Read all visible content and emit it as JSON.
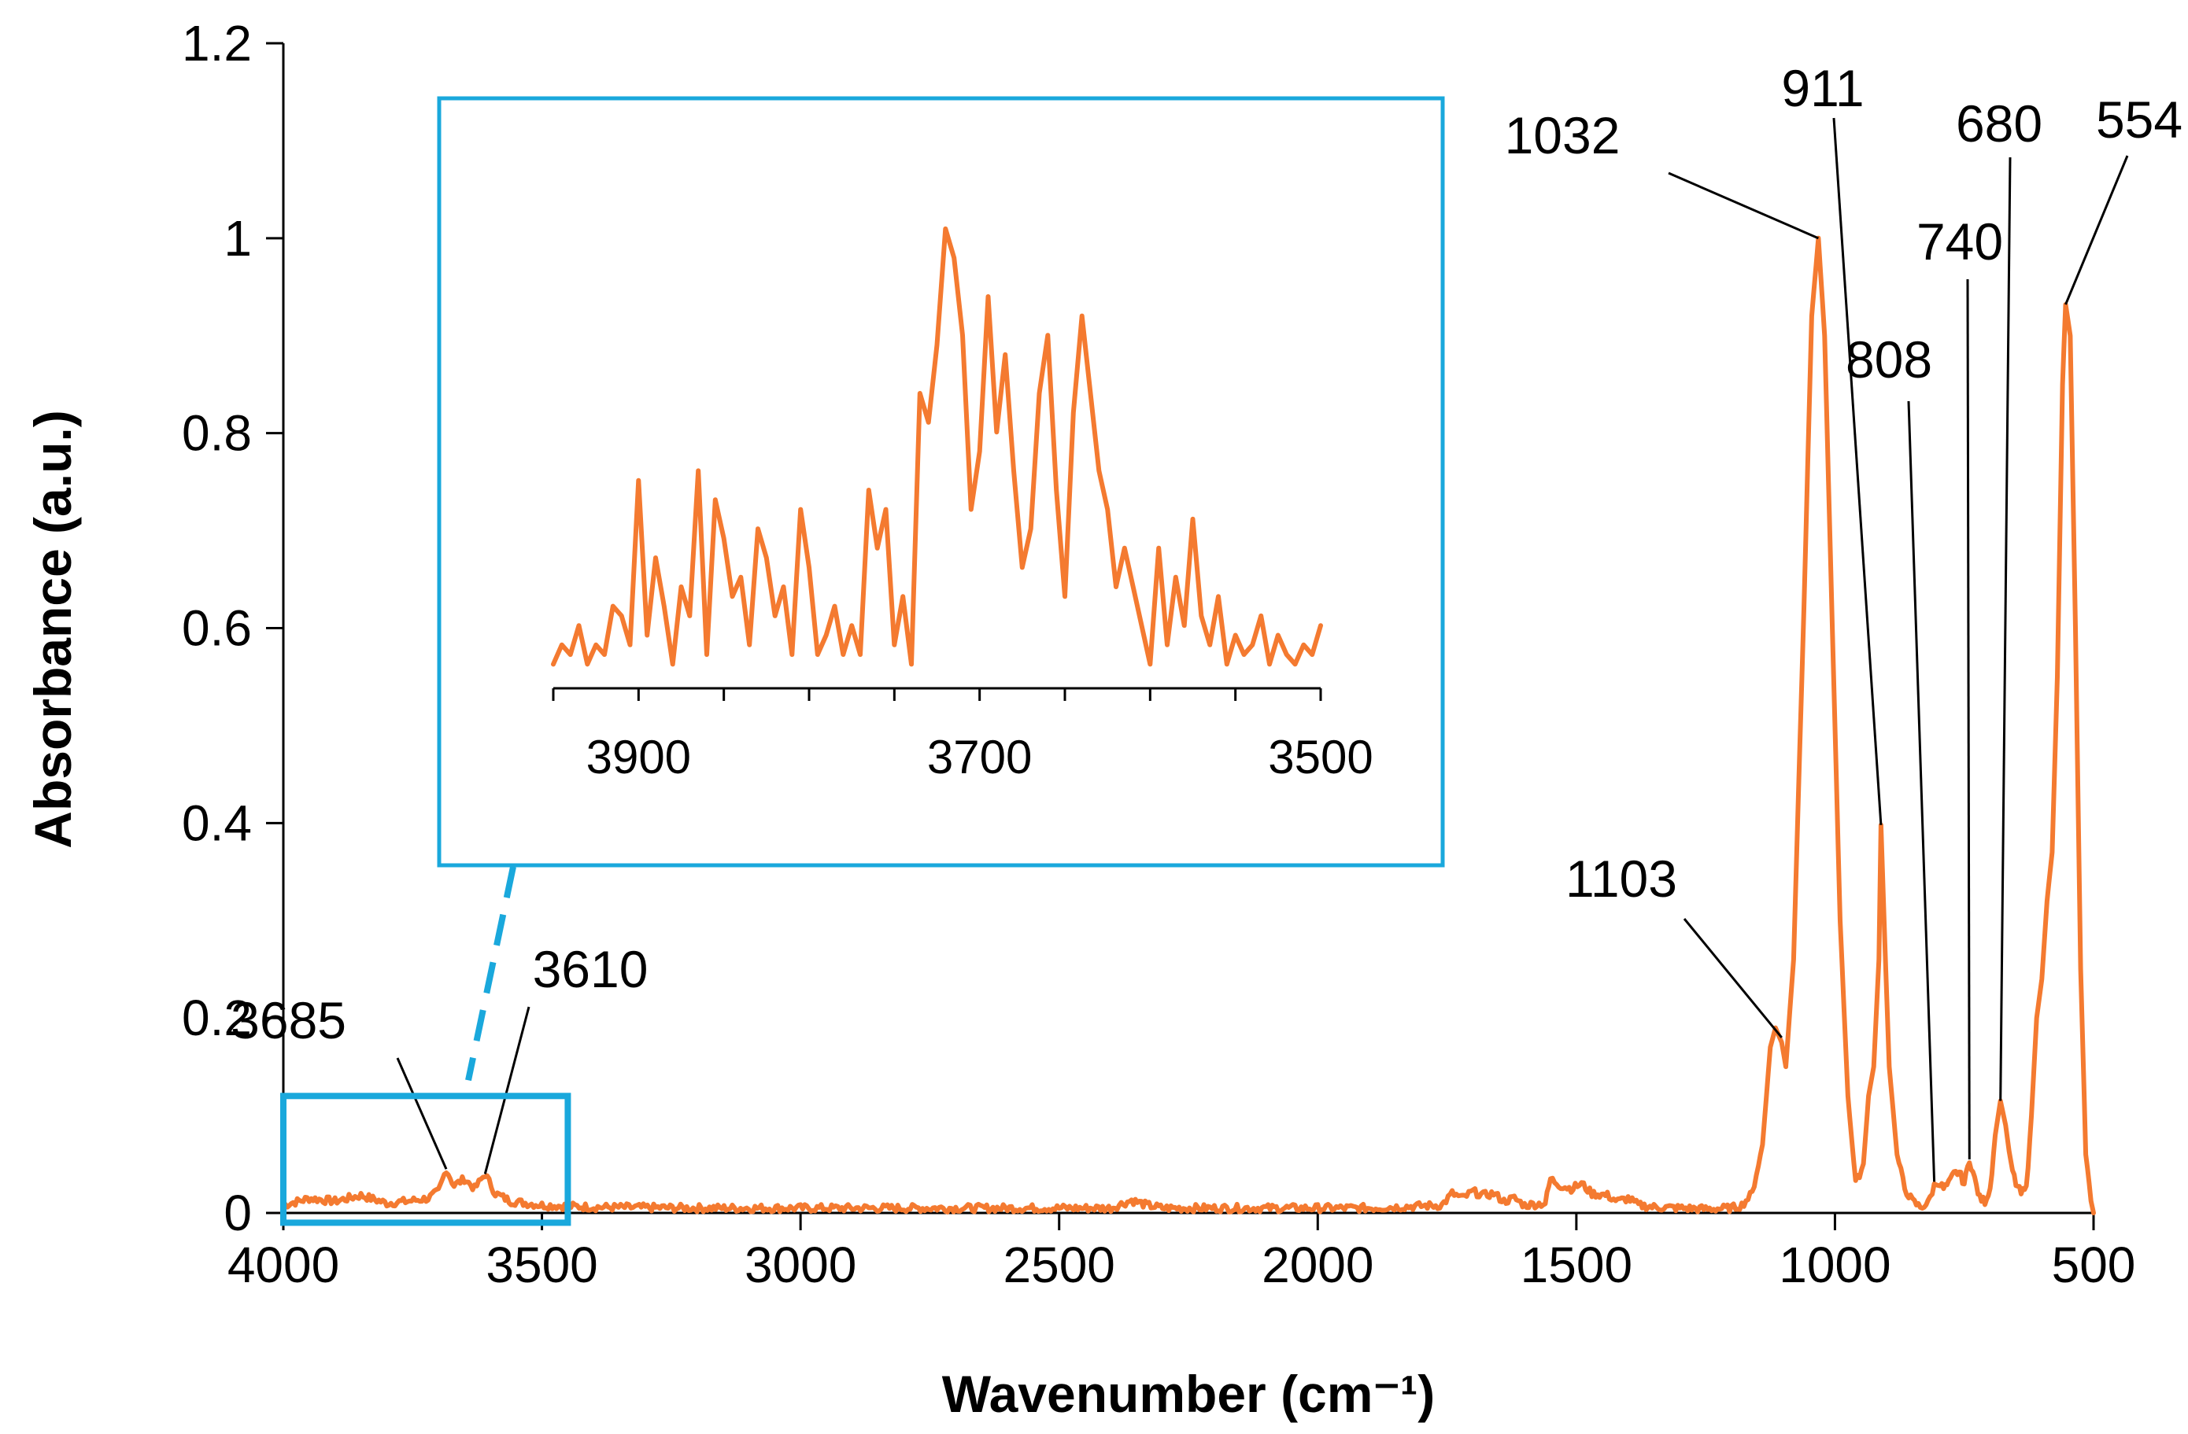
{
  "chart_data": {
    "type": "line",
    "title": "",
    "xlabel": "Wavenumber (cm⁻¹)",
    "ylabel": "Absorbance (a.u.)",
    "xlim": [
      4000,
      500
    ],
    "ylim": [
      0,
      1.2
    ],
    "x_reversed": true,
    "grid": false,
    "legend": "none",
    "line_color": "#f47a30",
    "x_ticks": [
      "4000",
      "3500",
      "3000",
      "2500",
      "2000",
      "1500",
      "1000",
      "500"
    ],
    "y_ticks": [
      "0",
      "0.2",
      "0.4",
      "0.6",
      "0.8",
      "1",
      "1.2"
    ],
    "series": [
      {
        "x": [
          4000,
          3950,
          3900,
          3850,
          3800,
          3760,
          3720,
          3700,
          3685,
          3670,
          3650,
          3630,
          3610,
          3590,
          3560,
          3500,
          3400,
          3200,
          3000,
          2800,
          2600,
          2400,
          2360,
          2330,
          2300,
          2100,
          1900,
          1760,
          1740,
          1720,
          1700,
          1680,
          1660,
          1640,
          1620,
          1600,
          1560,
          1550,
          1530,
          1510,
          1490,
          1470,
          1440,
          1420,
          1400,
          1380,
          1350,
          1300,
          1250,
          1200,
          1180,
          1160,
          1140,
          1125,
          1115,
          1103,
          1095,
          1080,
          1060,
          1045,
          1032,
          1020,
          1005,
          990,
          975,
          960,
          945,
          935,
          925,
          915,
          911,
          905,
          895,
          880,
          865,
          850,
          835,
          820,
          808,
          800,
          790,
          780,
          770,
          760,
          750,
          740,
          730,
          720,
          710,
          700,
          690,
          680,
          670,
          660,
          650,
          640,
          630,
          620,
          610,
          600,
          590,
          580,
          570,
          560,
          554,
          545,
          535,
          525,
          515,
          505,
          500
        ],
        "y": [
          0.008,
          0.015,
          0.012,
          0.018,
          0.01,
          0.012,
          0.015,
          0.022,
          0.045,
          0.028,
          0.035,
          0.025,
          0.04,
          0.02,
          0.012,
          0.008,
          0.006,
          0.005,
          0.005,
          0.005,
          0.005,
          0.005,
          0.013,
          0.008,
          0.005,
          0.005,
          0.005,
          0.008,
          0.02,
          0.015,
          0.022,
          0.018,
          0.02,
          0.012,
          0.015,
          0.008,
          0.01,
          0.035,
          0.028,
          0.025,
          0.03,
          0.02,
          0.018,
          0.012,
          0.015,
          0.008,
          0.006,
          0.005,
          0.004,
          0.005,
          0.008,
          0.02,
          0.07,
          0.17,
          0.19,
          0.175,
          0.15,
          0.26,
          0.62,
          0.92,
          1.0,
          0.9,
          0.6,
          0.3,
          0.12,
          0.03,
          0.05,
          0.12,
          0.15,
          0.26,
          0.398,
          0.3,
          0.15,
          0.06,
          0.025,
          0.012,
          0.006,
          0.01,
          0.028,
          0.032,
          0.025,
          0.03,
          0.04,
          0.042,
          0.03,
          0.055,
          0.035,
          0.015,
          0.012,
          0.025,
          0.08,
          0.115,
          0.09,
          0.05,
          0.03,
          0.02,
          0.025,
          0.1,
          0.2,
          0.24,
          0.32,
          0.37,
          0.55,
          0.85,
          0.932,
          0.9,
          0.6,
          0.25,
          0.06,
          0.01,
          0.0
        ]
      }
    ],
    "annotations": [
      {
        "label": "3685",
        "x": 3685,
        "y": 0.045
      },
      {
        "label": "3610",
        "x": 3610,
        "y": 0.04
      },
      {
        "label": "1103",
        "x": 1103,
        "y": 0.18
      },
      {
        "label": "1032",
        "x": 1032,
        "y": 1.0
      },
      {
        "label": "911",
        "x": 911,
        "y": 0.398
      },
      {
        "label": "808",
        "x": 808,
        "y": 0.032
      },
      {
        "label": "740",
        "x": 740,
        "y": 0.055
      },
      {
        "label": "680",
        "x": 680,
        "y": 0.115
      },
      {
        "label": "554",
        "x": 554,
        "y": 0.932
      }
    ],
    "inset": {
      "xlim": [
        3950,
        3500
      ],
      "x_reversed": true,
      "x_ticks": [
        "3900",
        "3700",
        "3500"
      ],
      "zoom_box": {
        "xlim": [
          4000,
          3450
        ],
        "ylim": [
          -0.01,
          0.12
        ]
      },
      "series": {
        "x": [
          3950,
          3945,
          3940,
          3935,
          3930,
          3925,
          3920,
          3915,
          3910,
          3905,
          3900,
          3895,
          3890,
          3885,
          3880,
          3875,
          3870,
          3865,
          3860,
          3855,
          3850,
          3845,
          3840,
          3835,
          3830,
          3825,
          3820,
          3815,
          3810,
          3805,
          3800,
          3795,
          3790,
          3785,
          3780,
          3775,
          3770,
          3765,
          3760,
          3755,
          3750,
          3745,
          3740,
          3735,
          3730,
          3725,
          3720,
          3715,
          3710,
          3705,
          3700,
          3695,
          3690,
          3685,
          3680,
          3675,
          3670,
          3665,
          3660,
          3655,
          3650,
          3645,
          3640,
          3635,
          3630,
          3625,
          3620,
          3615,
          3610,
          3605,
          3600,
          3595,
          3590,
          3585,
          3580,
          3575,
          3570,
          3565,
          3560,
          3555,
          3550,
          3545,
          3540,
          3535,
          3530,
          3525,
          3520,
          3515,
          3510,
          3505,
          3500
        ],
        "y": [
          0.02,
          0.04,
          0.03,
          0.06,
          0.02,
          0.04,
          0.03,
          0.08,
          0.07,
          0.04,
          0.21,
          0.05,
          0.13,
          0.08,
          0.02,
          0.1,
          0.07,
          0.22,
          0.03,
          0.19,
          0.15,
          0.09,
          0.11,
          0.04,
          0.16,
          0.13,
          0.07,
          0.1,
          0.03,
          0.18,
          0.12,
          0.03,
          0.05,
          0.08,
          0.03,
          0.06,
          0.03,
          0.2,
          0.14,
          0.18,
          0.04,
          0.09,
          0.02,
          0.3,
          0.27,
          0.35,
          0.47,
          0.44,
          0.36,
          0.18,
          0.24,
          0.4,
          0.26,
          0.34,
          0.22,
          0.12,
          0.16,
          0.3,
          0.36,
          0.2,
          0.09,
          0.28,
          0.38,
          0.3,
          0.22,
          0.18,
          0.1,
          0.14,
          0.1,
          0.06,
          0.02,
          0.14,
          0.04,
          0.11,
          0.06,
          0.17,
          0.07,
          0.04,
          0.09,
          0.02,
          0.05,
          0.03,
          0.04,
          0.07,
          0.02,
          0.05,
          0.03,
          0.02,
          0.04,
          0.03,
          0.06
        ]
      }
    }
  }
}
